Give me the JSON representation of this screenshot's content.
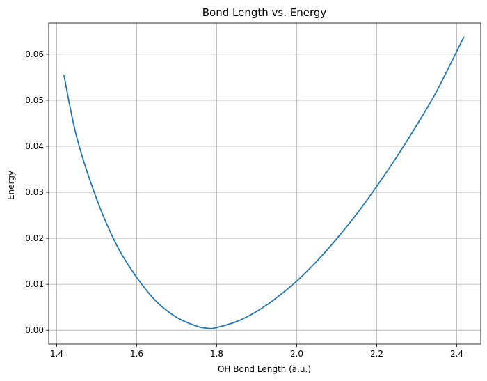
{
  "chart_data": {
    "type": "line",
    "title": "Bond Length vs. Energy",
    "xlabel": "OH Bond Length (a.u.)",
    "ylabel": "Energy",
    "xlim": [
      1.38,
      2.46
    ],
    "ylim": [
      -0.003,
      0.0668
    ],
    "xticks": [
      1.4,
      1.6,
      1.8,
      2.0,
      2.2,
      2.4
    ],
    "xtick_labels": [
      "1.4",
      "1.6",
      "1.8",
      "2.0",
      "2.2",
      "2.4"
    ],
    "yticks": [
      0.0,
      0.01,
      0.02,
      0.03,
      0.04,
      0.05,
      0.06
    ],
    "ytick_labels": [
      "0.00",
      "0.01",
      "0.02",
      "0.03",
      "0.04",
      "0.05",
      "0.06"
    ],
    "grid": true,
    "series": [
      {
        "color": "#1f77b4",
        "x": [
          1.418,
          1.45,
          1.5,
          1.55,
          1.6,
          1.65,
          1.7,
          1.75,
          1.78,
          1.8,
          1.85,
          1.9,
          1.95,
          2.0,
          2.05,
          2.1,
          2.15,
          2.2,
          2.25,
          2.3,
          2.35,
          2.418
        ],
        "y": [
          0.0555,
          0.042,
          0.0285,
          0.0185,
          0.0115,
          0.0062,
          0.0028,
          0.0009,
          0.0004,
          0.0006,
          0.0019,
          0.0041,
          0.0071,
          0.0107,
          0.015,
          0.0199,
          0.0253,
          0.0313,
          0.0377,
          0.0446,
          0.052,
          0.0638
        ]
      }
    ]
  }
}
